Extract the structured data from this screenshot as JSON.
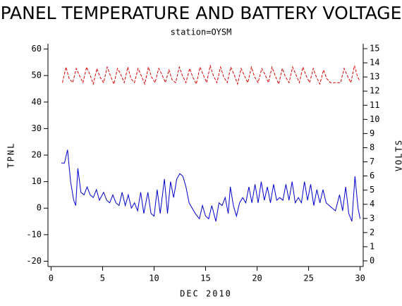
{
  "chart_data": {
    "type": "line",
    "title": "PANEL TEMPERATURE AND BATTERY VOLTAGE",
    "subtitle": "station=OYSM",
    "x_label": "DEC 2010",
    "y_label": "TPNL",
    "y2_label": "VOLTS",
    "xlim": [
      -0.3,
      30.3
    ],
    "xticks": [
      0,
      5,
      10,
      15,
      20,
      25,
      30
    ],
    "ylim": [
      -22,
      62
    ],
    "yticks": [
      -20,
      -10,
      0,
      10,
      20,
      30,
      40,
      50,
      60
    ],
    "y2lim": [
      -0.4,
      15.35
    ],
    "y2ticks": [
      0,
      1,
      2,
      3,
      4,
      5,
      6,
      7,
      8,
      9,
      10,
      11,
      12,
      13,
      14,
      15
    ],
    "series": [
      {
        "name": "TPNL",
        "color": "#0000cc",
        "dash": false,
        "x": [
          1.0,
          1.3,
          1.6,
          1.9,
          2.2,
          2.4,
          2.6,
          2.9,
          3.2,
          3.5,
          3.8,
          4.1,
          4.4,
          4.7,
          5.1,
          5.4,
          5.7,
          6.0,
          6.3,
          6.6,
          6.9,
          7.2,
          7.5,
          7.8,
          8.1,
          8.4,
          8.7,
          9.0,
          9.4,
          9.7,
          10.0,
          10.3,
          10.6,
          11.0,
          11.3,
          11.6,
          11.9,
          12.2,
          12.5,
          12.8,
          13.1,
          13.4,
          13.7,
          14.0,
          14.4,
          14.7,
          15.0,
          15.3,
          15.6,
          16.0,
          16.3,
          16.6,
          16.9,
          17.2,
          17.4,
          17.7,
          18.0,
          18.3,
          18.6,
          18.9,
          19.2,
          19.5,
          19.8,
          20.1,
          20.4,
          20.7,
          21.0,
          21.3,
          21.6,
          21.9,
          22.2,
          22.5,
          22.8,
          23.1,
          23.4,
          23.7,
          24.0,
          24.3,
          24.6,
          24.9,
          25.2,
          25.5,
          25.8,
          26.1,
          26.4,
          26.7,
          27.0,
          27.3,
          27.6,
          28.0,
          28.3,
          28.6,
          28.9,
          29.2,
          29.5,
          29.8,
          30.0
        ],
        "values": [
          17,
          17,
          22,
          10,
          3,
          1,
          15,
          6,
          5,
          8,
          5,
          4,
          7,
          3,
          6,
          3,
          2,
          5,
          2,
          1,
          6,
          1,
          5,
          0,
          2,
          -1,
          6,
          -2,
          6,
          -2,
          -3,
          7,
          -2,
          11,
          -2,
          10,
          4,
          11,
          13,
          12,
          8,
          2,
          0,
          -2,
          -4,
          1,
          -3,
          -4,
          1,
          -5,
          2,
          1,
          4,
          -2,
          8,
          1,
          -3,
          2,
          4,
          2,
          8,
          2,
          9,
          2,
          10,
          3,
          8,
          2,
          9,
          3,
          4,
          3,
          9,
          3,
          10,
          2,
          4,
          2,
          10,
          3,
          9,
          1,
          7,
          2,
          7,
          2,
          1,
          0,
          -1,
          5,
          -1,
          8,
          -2,
          -5,
          12,
          0,
          -4
        ]
      },
      {
        "name": "VOLTS",
        "color": "#dd0000",
        "dash": true,
        "axis": "y2",
        "x": [
          1.1,
          1.45,
          1.75,
          2.1,
          2.45,
          2.75,
          3.1,
          3.45,
          3.75,
          4.1,
          4.45,
          4.75,
          5.1,
          5.45,
          5.75,
          6.1,
          6.45,
          6.75,
          7.1,
          7.45,
          7.75,
          8.1,
          8.45,
          8.75,
          9.1,
          9.45,
          9.75,
          10.1,
          10.45,
          10.75,
          11.1,
          11.45,
          11.75,
          12.1,
          12.45,
          12.75,
          13.1,
          13.45,
          13.75,
          14.1,
          14.45,
          14.75,
          15.1,
          15.45,
          15.75,
          16.1,
          16.45,
          16.75,
          17.1,
          17.45,
          17.75,
          18.1,
          18.45,
          18.75,
          19.1,
          19.45,
          19.75,
          20.1,
          20.45,
          20.75,
          21.1,
          21.45,
          21.75,
          22.1,
          22.45,
          22.75,
          23.1,
          23.45,
          23.75,
          24.1,
          24.45,
          24.75,
          25.1,
          25.45,
          25.75,
          26.1,
          26.45,
          26.75,
          27.1,
          27.45,
          27.75,
          28.1,
          28.45,
          28.75,
          29.1,
          29.45,
          29.75,
          30.0
        ],
        "values": [
          12.6,
          13.7,
          12.9,
          12.6,
          13.6,
          13.1,
          12.6,
          13.7,
          13.2,
          12.5,
          13.6,
          13.0,
          12.6,
          13.7,
          13.1,
          12.5,
          13.6,
          13.2,
          12.6,
          13.7,
          12.9,
          12.6,
          13.6,
          13.1,
          12.5,
          13.7,
          13.0,
          12.6,
          13.6,
          13.2,
          12.6,
          13.5,
          12.8,
          12.6,
          13.7,
          13.1,
          12.6,
          13.6,
          13.0,
          12.5,
          13.7,
          13.2,
          12.6,
          13.8,
          13.1,
          12.6,
          13.7,
          13.0,
          12.6,
          13.7,
          13.2,
          12.5,
          13.6,
          13.1,
          12.6,
          13.7,
          13.0,
          12.6,
          13.6,
          13.2,
          12.6,
          13.7,
          13.1,
          12.5,
          13.6,
          13.0,
          12.6,
          13.7,
          13.2,
          12.6,
          13.7,
          13.1,
          12.6,
          13.6,
          13.0,
          12.5,
          13.5,
          12.9,
          12.6,
          12.6,
          12.6,
          12.6,
          13.6,
          13.1,
          12.6,
          13.8,
          13.0,
          12.7
        ]
      }
    ]
  }
}
